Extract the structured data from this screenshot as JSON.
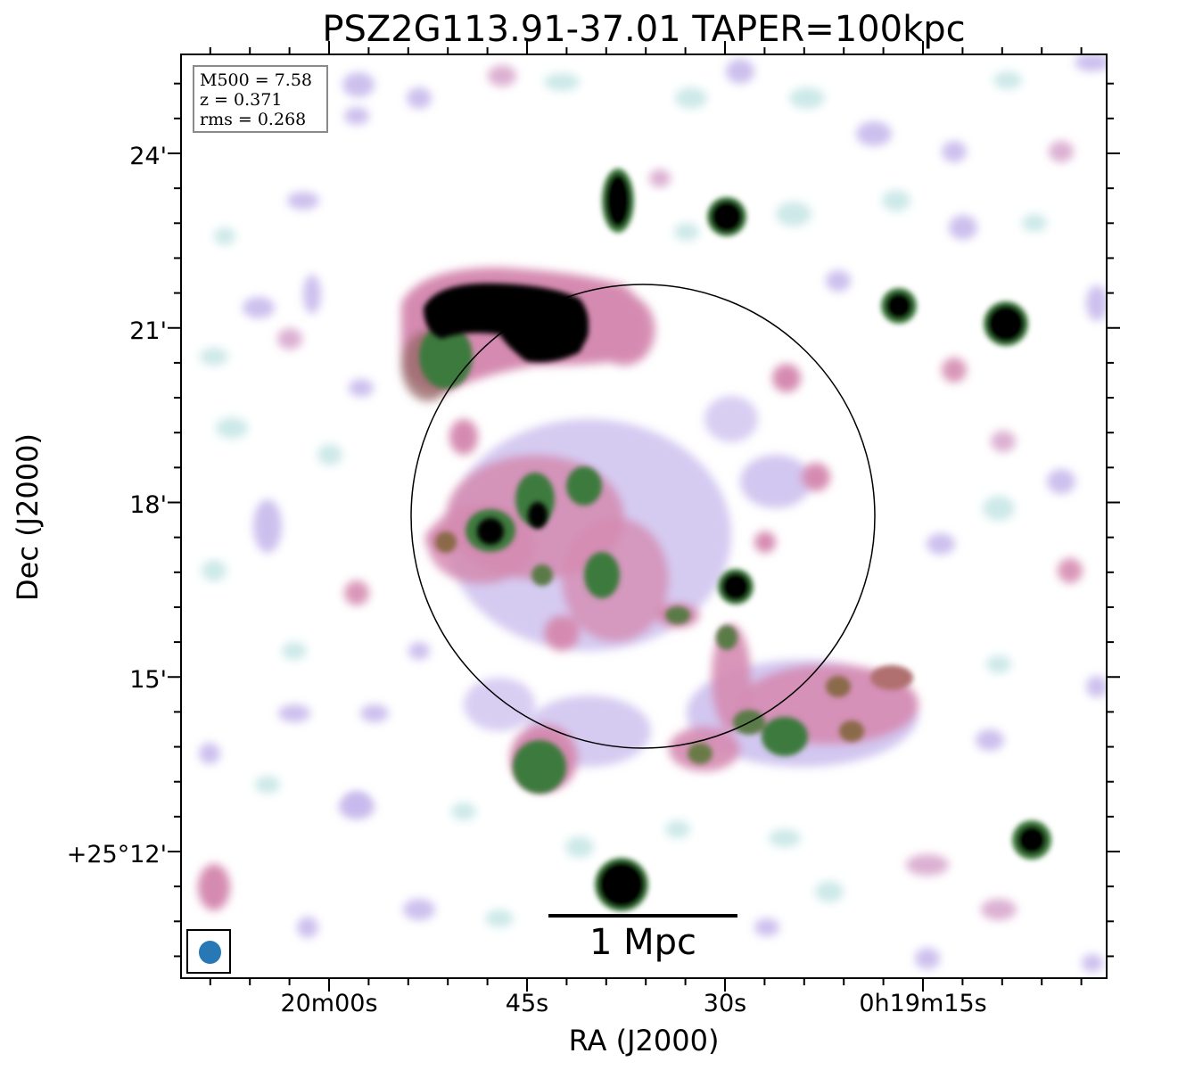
{
  "title": "PSZ2G113.91-37.01 TAPER=100kpc",
  "axes": {
    "xlabel": "RA (J2000)",
    "ylabel": "Dec (J2000)",
    "xticks": [
      "20m00s",
      "45s",
      "30s",
      "0h19m15s"
    ],
    "yticks": [
      "24'",
      "21'",
      "18'",
      "15'",
      "+25°12'"
    ]
  },
  "info_box": {
    "mass": "M500 = 7.58",
    "redshift": "z = 0.371",
    "rms": "rms = 0.268"
  },
  "scalebar": {
    "label": "1 Mpc"
  },
  "colors": {
    "background": "#ffffff",
    "faint_emission": "#c8e6e6",
    "low_emission": "#b9b4ee",
    "mid_emission": "#d58bb1",
    "high_emission": "#3e7a3c",
    "peak_emission": "#000000",
    "beam": "#2878b5",
    "circle": "#000000"
  }
}
